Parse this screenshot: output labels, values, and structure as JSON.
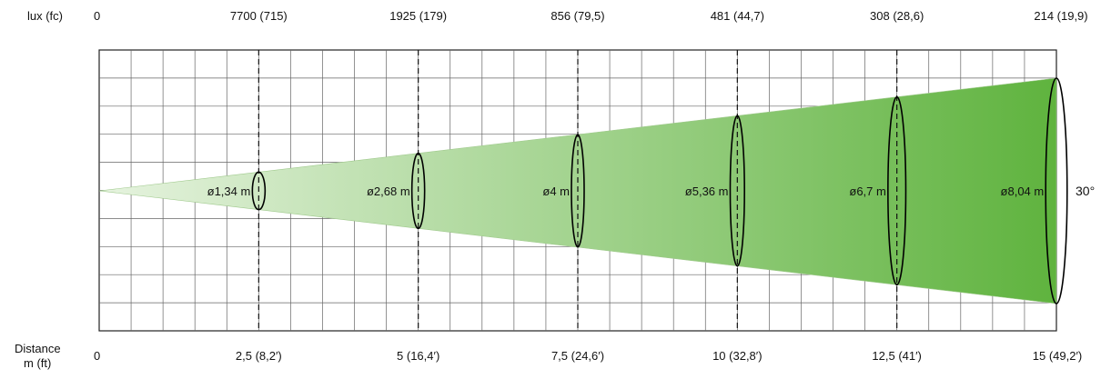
{
  "lux_header": "lux (fc)",
  "lux_values": [
    "0",
    "7700 (715)",
    "1925 (179)",
    "856 (79,5)",
    "481 (44,7)",
    "308 (28,6)",
    "214 (19,9)"
  ],
  "distance_header_line1": "Distance",
  "distance_header_line2": "m (ft)",
  "distance_values": [
    "0",
    "2,5  (8,2′)",
    "5  (16,4′)",
    "7,5 (24,6′)",
    "10  (32,8′)",
    "12,5 (41′)",
    "15 (49,2′)"
  ],
  "beam_angle": "30°",
  "chart_data": {
    "type": "beam-diagram",
    "beam_angle_deg": 30,
    "distances_m": [
      0,
      2.5,
      5,
      7.5,
      10,
      12.5,
      15
    ],
    "distances_ft": [
      0,
      8.2,
      16.4,
      24.6,
      32.8,
      41,
      49.2
    ],
    "lux": [
      null,
      7700,
      1925,
      856,
      481,
      308,
      214
    ],
    "fc": [
      null,
      715,
      179,
      79.5,
      44.7,
      28.6,
      19.9
    ],
    "beam_diameters_m": [
      1.34,
      2.68,
      4,
      5.36,
      6.7,
      8.04
    ],
    "beam_diameter_labels": [
      "ø1,34 m",
      "ø2,68 m",
      "ø4 m",
      "ø5,36 m",
      "ø6,7 m",
      "ø8,04 m"
    ],
    "colors": {
      "beam_start": "#e6f3df",
      "beam_end": "#5fb33e",
      "grid": "#222222"
    }
  }
}
